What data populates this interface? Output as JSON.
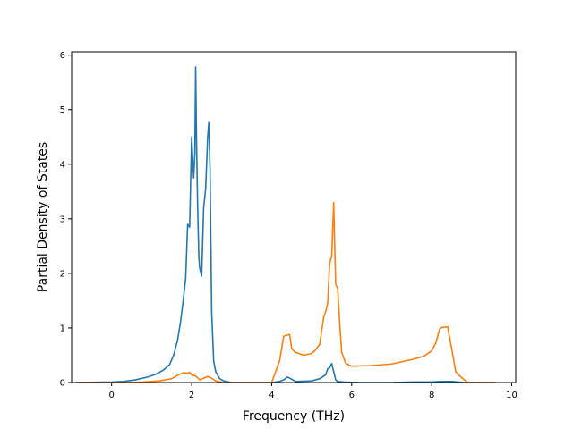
{
  "chart_data": {
    "type": "line",
    "title": "",
    "xlabel": "Frequency (THz)",
    "ylabel": "Partial Density of States",
    "xlim": [
      -1.0,
      10.1
    ],
    "ylim": [
      0,
      6.06
    ],
    "xticks": [
      0,
      2,
      4,
      6,
      8,
      10
    ],
    "yticks": [
      0,
      1,
      2,
      3,
      4,
      5,
      6
    ],
    "grid": false,
    "legend": "none",
    "series": [
      {
        "color": "#1f77b4",
        "x": [
          -0.9,
          0.0,
          0.3,
          0.6,
          0.9,
          1.1,
          1.3,
          1.45,
          1.55,
          1.65,
          1.72,
          1.78,
          1.85,
          1.9,
          1.95,
          2.0,
          2.05,
          2.08,
          2.1,
          2.12,
          2.15,
          2.18,
          2.2,
          2.25,
          2.3,
          2.35,
          2.4,
          2.43,
          2.46,
          2.5,
          2.55,
          2.6,
          2.7,
          2.8,
          3.0,
          4.0,
          4.2,
          4.3,
          4.4,
          4.5,
          4.6,
          5.0,
          5.2,
          5.35,
          5.4,
          5.45,
          5.5,
          5.55,
          5.6,
          5.65,
          5.8,
          6.2,
          7.0,
          7.5,
          8.0,
          8.2,
          8.4,
          8.5,
          8.8,
          9.6
        ],
        "y": [
          0.0,
          0.01,
          0.02,
          0.05,
          0.1,
          0.15,
          0.23,
          0.33,
          0.5,
          0.78,
          1.1,
          1.45,
          1.9,
          2.9,
          2.85,
          4.5,
          3.75,
          4.2,
          5.78,
          4.5,
          3.2,
          2.3,
          2.1,
          1.95,
          3.2,
          3.55,
          4.5,
          4.78,
          3.9,
          1.3,
          0.4,
          0.2,
          0.07,
          0.03,
          0.0,
          0.0,
          0.02,
          0.05,
          0.1,
          0.06,
          0.02,
          0.03,
          0.07,
          0.14,
          0.25,
          0.27,
          0.35,
          0.2,
          0.05,
          0.02,
          0.01,
          0.0,
          0.0,
          0.01,
          0.01,
          0.02,
          0.02,
          0.02,
          0.0,
          0.0
        ]
      },
      {
        "color": "#ff7f0e",
        "x": [
          -0.9,
          0.3,
          0.8,
          1.2,
          1.5,
          1.7,
          1.8,
          1.9,
          1.95,
          2.0,
          2.1,
          2.2,
          2.3,
          2.4,
          2.5,
          2.6,
          2.8,
          3.5,
          4.0,
          4.1,
          4.2,
          4.3,
          4.35,
          4.45,
          4.5,
          4.6,
          4.8,
          5.0,
          5.1,
          5.2,
          5.3,
          5.35,
          5.4,
          5.45,
          5.5,
          5.55,
          5.6,
          5.65,
          5.7,
          5.75,
          5.85,
          6.0,
          6.5,
          7.0,
          7.5,
          7.8,
          8.0,
          8.1,
          8.2,
          8.25,
          8.4,
          8.5,
          8.6,
          8.7,
          8.9,
          9.6
        ],
        "y": [
          0.0,
          0.0,
          0.01,
          0.03,
          0.07,
          0.15,
          0.18,
          0.17,
          0.19,
          0.14,
          0.12,
          0.05,
          0.08,
          0.11,
          0.08,
          0.03,
          0.0,
          0.0,
          0.0,
          0.2,
          0.4,
          0.85,
          0.86,
          0.88,
          0.62,
          0.55,
          0.5,
          0.53,
          0.6,
          0.7,
          1.2,
          1.3,
          1.45,
          2.2,
          2.3,
          3.3,
          1.8,
          1.72,
          1.1,
          0.55,
          0.35,
          0.3,
          0.31,
          0.34,
          0.42,
          0.48,
          0.58,
          0.72,
          0.98,
          1.01,
          1.02,
          0.62,
          0.2,
          0.12,
          0.0,
          0.0
        ]
      }
    ]
  }
}
